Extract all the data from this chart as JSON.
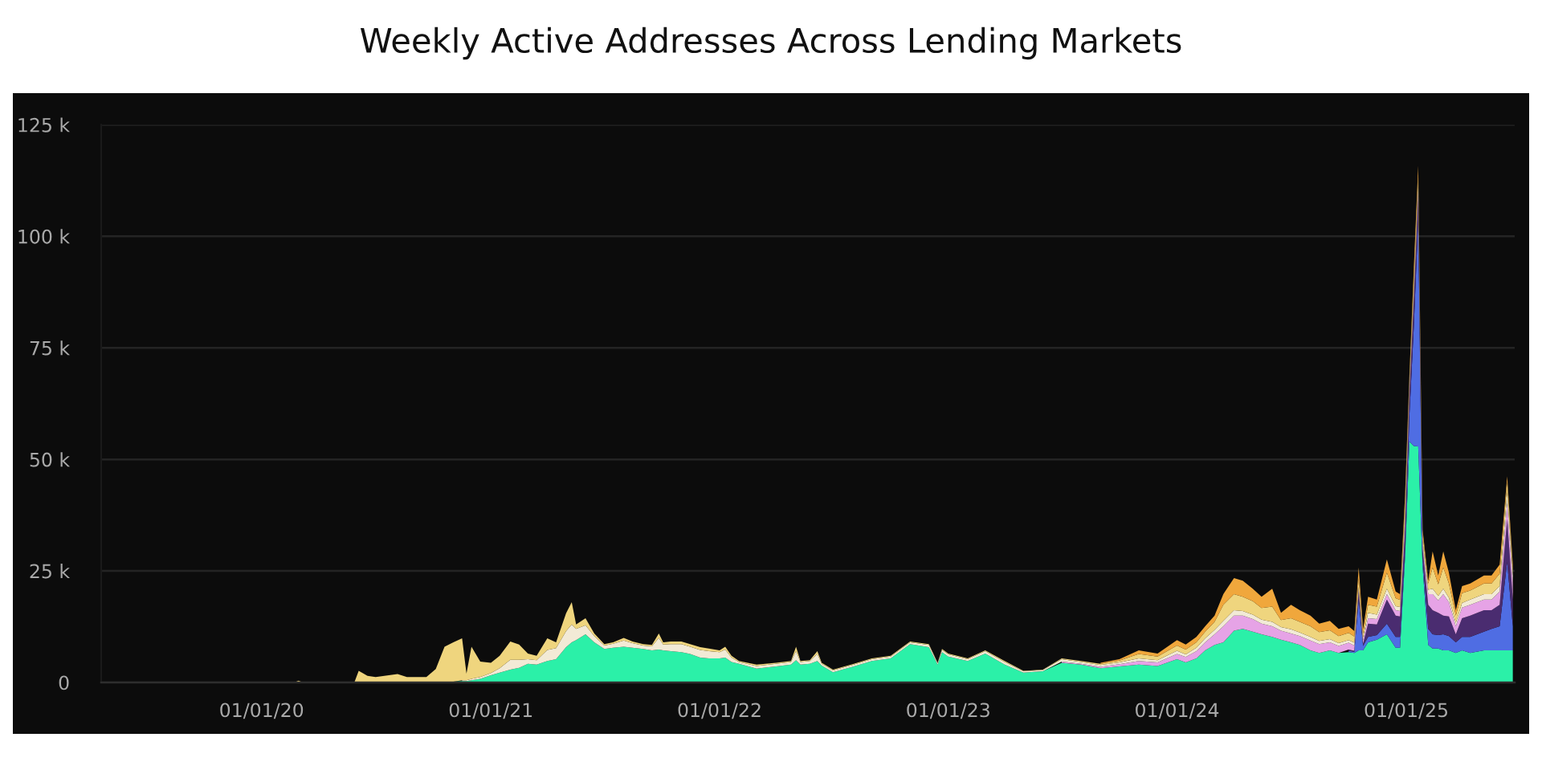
{
  "chart_data": {
    "type": "area",
    "stacked": true,
    "title": "Weekly Active Addresses Across Lending Markets",
    "x": [
      "2020-02-22",
      "2020-02-29",
      "2020-03-07",
      "2020-05-28",
      "2020-06-04",
      "2020-06-18",
      "2020-07-01",
      "2020-08-05",
      "2020-08-20",
      "2020-09-20",
      "2020-10-05",
      "2020-10-19",
      "2020-11-02",
      "2020-11-16",
      "2020-11-23",
      "2020-12-01",
      "2020-12-15",
      "2021-01-01",
      "2021-01-15",
      "2021-02-01",
      "2021-02-15",
      "2021-03-01",
      "2021-03-15",
      "2021-04-01",
      "2021-04-15",
      "2021-05-01",
      "2021-05-10",
      "2021-05-17",
      "2021-06-01",
      "2021-06-15",
      "2021-07-01",
      "2021-07-15",
      "2021-08-01",
      "2021-08-15",
      "2021-09-01",
      "2021-09-15",
      "2021-09-26",
      "2021-10-03",
      "2021-10-15",
      "2021-11-01",
      "2021-11-15",
      "2021-12-01",
      "2021-12-15",
      "2022-01-01",
      "2022-01-10",
      "2022-01-20",
      "2022-02-01",
      "2022-03-01",
      "2022-04-01",
      "2022-04-25",
      "2022-05-03",
      "2022-05-10",
      "2022-05-25",
      "2022-06-06",
      "2022-06-13",
      "2022-07-01",
      "2022-08-01",
      "2022-09-01",
      "2022-10-01",
      "2022-11-01",
      "2022-12-01",
      "2022-12-15",
      "2022-12-22",
      "2023-01-01",
      "2023-02-01",
      "2023-03-01",
      "2023-04-01",
      "2023-05-01",
      "2023-06-01",
      "2023-07-01",
      "2023-08-01",
      "2023-09-01",
      "2023-10-01",
      "2023-11-01",
      "2023-12-01",
      "2024-01-01",
      "2024-01-15",
      "2024-02-01",
      "2024-02-15",
      "2024-03-01",
      "2024-03-15",
      "2024-04-01",
      "2024-04-15",
      "2024-05-01",
      "2024-05-15",
      "2024-06-01",
      "2024-06-15",
      "2024-07-01",
      "2024-07-15",
      "2024-08-01",
      "2024-08-15",
      "2024-09-01",
      "2024-09-15",
      "2024-10-01",
      "2024-10-10",
      "2024-10-17",
      "2024-10-24",
      "2024-11-01",
      "2024-11-15",
      "2024-12-01",
      "2024-12-15",
      "2024-12-22",
      "2024-12-30",
      "2025-01-06",
      "2025-01-13",
      "2025-01-20",
      "2025-01-27",
      "2025-02-05",
      "2025-02-12",
      "2025-02-21",
      "2025-03-01",
      "2025-03-10",
      "2025-03-21",
      "2025-03-31",
      "2025-04-13",
      "2025-05-05",
      "2025-05-17",
      "2025-05-30",
      "2025-06-11",
      "2025-06-20"
    ],
    "series": [
      {
        "color": "#2bf0a8",
        "values": [
          null,
          null,
          null,
          null,
          null,
          null,
          null,
          null,
          null,
          null,
          null,
          null,
          200,
          300,
          300,
          500,
          800,
          1600,
          2200,
          2900,
          3300,
          4200,
          4000,
          4800,
          5200,
          7900,
          9000,
          9500,
          10800,
          9000,
          7500,
          7800,
          8000,
          7800,
          7500,
          7200,
          7400,
          7200,
          7000,
          6800,
          6400,
          5600,
          5400,
          5400,
          5600,
          4600,
          4200,
          3100,
          3600,
          4000,
          5000,
          4000,
          4200,
          4800,
          3800,
          2300,
          3500,
          4800,
          5400,
          8600,
          7900,
          4000,
          6800,
          5800,
          4800,
          6500,
          4000,
          2200,
          2500,
          4400,
          4000,
          3200,
          3600,
          4000,
          3700,
          5200,
          4500,
          5400,
          7200,
          8400,
          9000,
          11600,
          12000,
          11400,
          10800,
          10200,
          9600,
          9000,
          8400,
          7200,
          6600,
          7200,
          6600,
          6800,
          6600,
          7200,
          7200,
          9000,
          9600,
          10800,
          7800,
          7800,
          28000,
          54000,
          53000,
          52900,
          26000,
          8400,
          7600,
          7600,
          7200,
          7200,
          6600,
          7200,
          6600,
          7200,
          7200,
          7200,
          7200,
          7200
        ]
      },
      {
        "color": "#4f6de3",
        "values": [
          null,
          null,
          null,
          null,
          null,
          null,
          null,
          null,
          null,
          null,
          null,
          null,
          null,
          null,
          null,
          null,
          null,
          null,
          null,
          null,
          null,
          null,
          null,
          null,
          null,
          null,
          null,
          null,
          null,
          null,
          null,
          null,
          null,
          null,
          null,
          null,
          null,
          null,
          null,
          null,
          null,
          null,
          null,
          null,
          null,
          null,
          null,
          null,
          null,
          null,
          null,
          null,
          null,
          null,
          null,
          null,
          null,
          null,
          null,
          null,
          null,
          null,
          null,
          null,
          null,
          null,
          null,
          null,
          null,
          null,
          null,
          null,
          null,
          null,
          null,
          null,
          null,
          null,
          null,
          null,
          null,
          null,
          null,
          null,
          null,
          null,
          null,
          null,
          null,
          null,
          null,
          null,
          null,
          300,
          300,
          11400,
          1000,
          1200,
          1000,
          2400,
          2400,
          2400,
          2000,
          6000,
          26800,
          50900,
          2000,
          3600,
          3200,
          3000,
          3600,
          3200,
          2400,
          3000,
          3600,
          4200,
          4800,
          5400,
          19800,
          5400
        ]
      },
      {
        "color": "#4a2c70",
        "values": [
          null,
          null,
          null,
          null,
          null,
          null,
          null,
          null,
          null,
          null,
          null,
          null,
          null,
          null,
          null,
          null,
          null,
          null,
          null,
          null,
          null,
          null,
          null,
          null,
          null,
          null,
          null,
          null,
          null,
          null,
          null,
          null,
          null,
          null,
          null,
          null,
          null,
          null,
          null,
          null,
          null,
          null,
          null,
          null,
          null,
          null,
          null,
          null,
          null,
          null,
          null,
          null,
          null,
          null,
          null,
          null,
          null,
          null,
          null,
          null,
          null,
          null,
          null,
          null,
          null,
          null,
          null,
          null,
          null,
          null,
          null,
          null,
          null,
          null,
          null,
          null,
          null,
          null,
          null,
          null,
          null,
          null,
          null,
          null,
          null,
          null,
          null,
          null,
          null,
          null,
          null,
          null,
          null,
          300,
          200,
          1800,
          500,
          3000,
          2400,
          5400,
          4800,
          4600,
          4200,
          4800,
          6000,
          5400,
          2000,
          5400,
          5400,
          5000,
          4200,
          4400,
          1800,
          4200,
          4800,
          4800,
          4200,
          4800,
          9600,
          6000
        ]
      },
      {
        "color": "#e6a3e6",
        "values": [
          null,
          null,
          null,
          null,
          null,
          null,
          null,
          null,
          null,
          null,
          null,
          null,
          null,
          null,
          null,
          null,
          null,
          null,
          null,
          null,
          null,
          null,
          null,
          null,
          null,
          null,
          null,
          null,
          null,
          null,
          null,
          null,
          null,
          null,
          null,
          null,
          null,
          null,
          null,
          null,
          null,
          null,
          null,
          null,
          null,
          null,
          null,
          null,
          null,
          null,
          null,
          null,
          null,
          null,
          null,
          null,
          null,
          null,
          null,
          null,
          null,
          null,
          null,
          null,
          null,
          null,
          null,
          null,
          null,
          300,
          200,
          300,
          500,
          800,
          800,
          1200,
          1200,
          1600,
          1800,
          2400,
          3600,
          3400,
          3000,
          2800,
          2400,
          2400,
          2000,
          2000,
          2000,
          2200,
          2000,
          1800,
          1600,
          1500,
          1200,
          600,
          800,
          1200,
          1200,
          1200,
          1200,
          1200,
          2400,
          1200,
          1200,
          1200,
          1000,
          2400,
          3600,
          2800,
          4800,
          3200,
          1800,
          2400,
          2400,
          2400,
          2400,
          3000,
          3600,
          3600
        ]
      },
      {
        "color": "#f2ead6",
        "values": [
          null,
          null,
          null,
          null,
          null,
          null,
          null,
          null,
          null,
          null,
          null,
          null,
          null,
          200,
          200,
          300,
          400,
          500,
          1000,
          2200,
          1800,
          1000,
          1000,
          2500,
          2500,
          3600,
          4000,
          2500,
          2000,
          1400,
          800,
          900,
          1400,
          1000,
          800,
          900,
          2600,
          1300,
          1600,
          1800,
          1600,
          1700,
          1600,
          1400,
          1800,
          1000,
          400,
          600,
          600,
          600,
          2000,
          600,
          600,
          1600,
          400,
          400,
          400,
          400,
          400,
          400,
          500,
          300,
          500,
          500,
          400,
          500,
          600,
          300,
          300,
          500,
          400,
          400,
          400,
          600,
          500,
          700,
          600,
          800,
          900,
          1000,
          1200,
          1200,
          1000,
          1000,
          900,
          1000,
          800,
          900,
          800,
          800,
          700,
          700,
          600,
          600,
          600,
          400,
          500,
          1200,
          1000,
          1200,
          900,
          900,
          1200,
          800,
          1200,
          1200,
          800,
          1000,
          1200,
          1000,
          1200,
          1000,
          800,
          1000,
          1200,
          1200,
          1200,
          1200,
          2400,
          1800
        ]
      },
      {
        "color": "#efd57e",
        "values": [
          0,
          400,
          0,
          0,
          2600,
          1500,
          1200,
          1900,
          1200,
          1200,
          3000,
          8000,
          8800,
          9400,
          1500,
          7200,
          3500,
          2300,
          2800,
          4100,
          3400,
          1300,
          1000,
          2600,
          1300,
          4000,
          5000,
          1000,
          1600,
          600,
          300,
          300,
          600,
          400,
          300,
          300,
          1000,
          500,
          600,
          600,
          600,
          600,
          600,
          400,
          600,
          400,
          200,
          300,
          200,
          200,
          1000,
          200,
          200,
          600,
          200,
          200,
          200,
          200,
          200,
          200,
          200,
          100,
          200,
          200,
          200,
          200,
          200,
          100,
          100,
          200,
          200,
          300,
          400,
          1000,
          800,
          1200,
          1100,
          1200,
          1500,
          1800,
          3600,
          3600,
          3200,
          3000,
          2600,
          3400,
          1600,
          2500,
          2400,
          2400,
          2000,
          2000,
          1600,
          1600,
          1400,
          2000,
          1000,
          1800,
          1800,
          3600,
          1800,
          1600,
          2400,
          1200,
          2400,
          1800,
          1500,
          1400,
          4800,
          2600,
          4800,
          3200,
          1600,
          2200,
          2000,
          2400,
          2400,
          2800,
          2400,
          1200
        ]
      },
      {
        "color": "#f0a73c",
        "values": [
          null,
          null,
          null,
          null,
          null,
          null,
          null,
          null,
          null,
          null,
          null,
          null,
          null,
          null,
          null,
          null,
          null,
          null,
          null,
          null,
          null,
          null,
          null,
          null,
          null,
          null,
          null,
          null,
          null,
          null,
          null,
          null,
          null,
          null,
          null,
          null,
          null,
          null,
          null,
          null,
          null,
          null,
          null,
          null,
          null,
          null,
          null,
          null,
          null,
          null,
          null,
          null,
          null,
          null,
          null,
          null,
          null,
          null,
          null,
          null,
          null,
          null,
          null,
          null,
          null,
          null,
          null,
          null,
          null,
          null,
          null,
          200,
          300,
          800,
          700,
          1200,
          1100,
          1200,
          1200,
          1400,
          2400,
          3600,
          3600,
          2800,
          2500,
          4000,
          1600,
          3000,
          2600,
          2400,
          1900,
          2100,
          1600,
          1500,
          1200,
          2400,
          1000,
          1800,
          1600,
          3000,
          1500,
          1300,
          1800,
          1000,
          2400,
          2400,
          1000,
          600,
          3600,
          2000,
          3600,
          2400,
          1200,
          1600,
          1600,
          1800,
          1800,
          2000,
          1200,
          1200
        ]
      }
    ],
    "xlim": [
      "2019-04-20",
      "2025-06-23"
    ],
    "xticks": [
      {
        "value": "2020-01-01",
        "label": "01/01/20"
      },
      {
        "value": "2021-01-01",
        "label": "01/01/21"
      },
      {
        "value": "2022-01-01",
        "label": "01/01/22"
      },
      {
        "value": "2023-01-01",
        "label": "01/01/23"
      },
      {
        "value": "2024-01-01",
        "label": "01/01/24"
      },
      {
        "value": "2025-01-01",
        "label": "01/01/25"
      }
    ],
    "ylim": [
      0,
      125000
    ],
    "yticks": [
      0,
      {
        "value": 25000,
        "label": "25 k"
      },
      {
        "value": 50000,
        "label": "50 k"
      },
      {
        "value": 75000,
        "label": "75 k"
      },
      {
        "value": 100000,
        "label": "100 k"
      },
      {
        "value": 125000,
        "label": "125 k"
      }
    ],
    "grid": "y"
  }
}
